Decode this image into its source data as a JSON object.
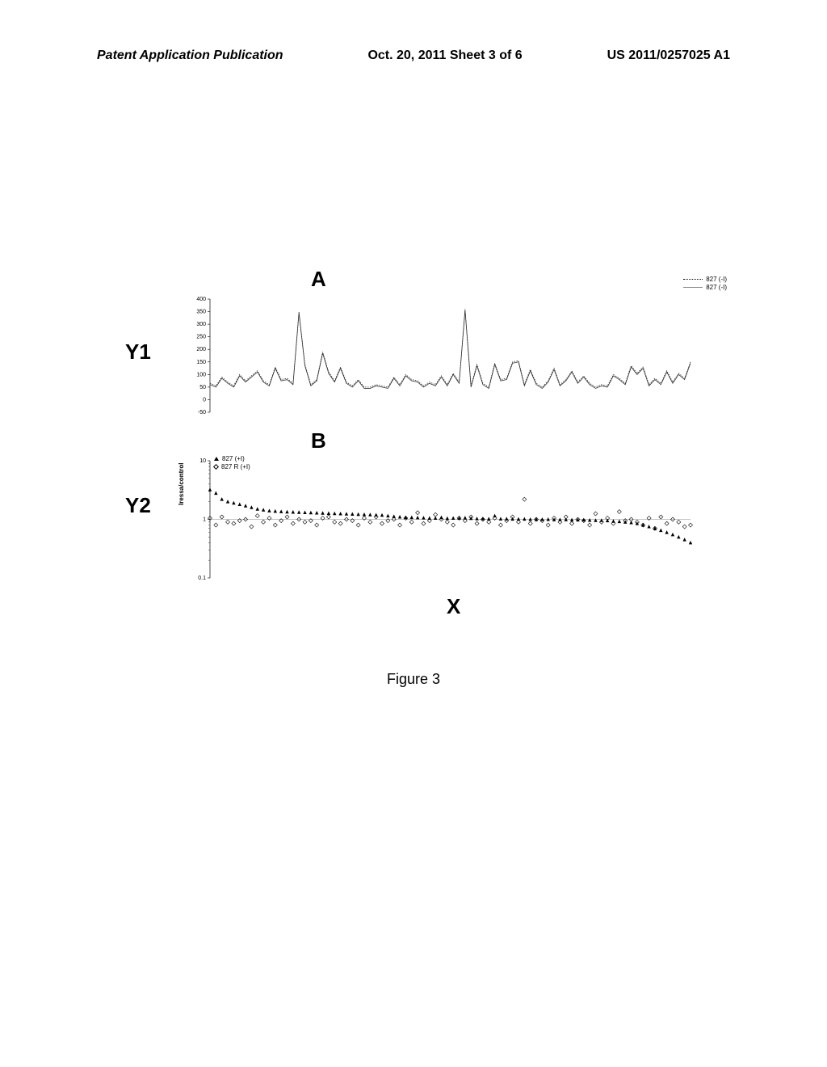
{
  "header": {
    "left": "Patent Application Publication",
    "center": "Oct. 20, 2011  Sheet 3 of 6",
    "right": "US 2011/0257025 A1"
  },
  "figure": {
    "caption": "Figure 3",
    "panelA": {
      "label": "A",
      "yAxisLabel": "Y1",
      "type": "line",
      "yticks": [
        -50,
        0,
        50,
        100,
        150,
        200,
        250,
        300,
        350,
        400
      ],
      "ylim": [
        -50,
        400
      ],
      "legend": [
        {
          "label": "827 (-I)",
          "style": "dotted"
        },
        {
          "label": "827 (-I)",
          "style": "solid"
        }
      ],
      "line_color": "#333333",
      "background_color": "#ffffff",
      "series1": [
        65,
        55,
        90,
        70,
        55,
        100,
        75,
        95,
        115,
        75,
        60,
        130,
        80,
        85,
        65,
        350,
        140,
        60,
        80,
        190,
        110,
        75,
        130,
        70,
        55,
        80,
        50,
        50,
        60,
        55,
        50,
        90,
        60,
        100,
        80,
        75,
        55,
        70,
        60,
        95,
        60,
        105,
        70,
        360,
        55,
        140,
        65,
        50,
        145,
        80,
        85,
        150,
        155,
        60,
        120,
        65,
        50,
        75,
        125,
        60,
        80,
        115,
        70,
        95,
        65,
        50,
        60,
        55,
        100,
        85,
        65,
        135,
        105,
        130,
        60,
        85,
        65,
        115,
        70,
        105,
        85,
        150
      ],
      "series2": [
        60,
        50,
        85,
        65,
        50,
        95,
        70,
        90,
        110,
        70,
        55,
        125,
        75,
        80,
        60,
        345,
        135,
        55,
        75,
        185,
        105,
        70,
        125,
        65,
        50,
        75,
        45,
        45,
        55,
        50,
        45,
        85,
        55,
        95,
        75,
        70,
        50,
        65,
        55,
        90,
        55,
        100,
        65,
        355,
        50,
        135,
        60,
        45,
        140,
        75,
        80,
        145,
        150,
        55,
        115,
        60,
        45,
        70,
        120,
        55,
        75,
        110,
        65,
        90,
        60,
        45,
        55,
        50,
        95,
        80,
        60,
        130,
        100,
        125,
        55,
        80,
        60,
        110,
        65,
        100,
        80,
        145
      ]
    },
    "panelB": {
      "label": "B",
      "yAxisLabel": "Y2",
      "yAxisTitle": "Iressa/control",
      "type": "scatter",
      "yticks": [
        0.1,
        1,
        10
      ],
      "ylim": [
        0.1,
        10
      ],
      "scale": "log",
      "legend": [
        {
          "label": "827 (+I)",
          "marker": "triangle-filled"
        },
        {
          "label": "827 R (+I)",
          "marker": "diamond-open"
        }
      ],
      "marker_color_triangle": "#000000",
      "marker_color_diamond": "#000000",
      "background_color": "#ffffff",
      "triangles": [
        3.2,
        2.8,
        2.2,
        2.0,
        1.9,
        1.8,
        1.7,
        1.6,
        1.5,
        1.45,
        1.4,
        1.38,
        1.36,
        1.34,
        1.33,
        1.32,
        1.31,
        1.3,
        1.29,
        1.28,
        1.27,
        1.26,
        1.25,
        1.24,
        1.23,
        1.22,
        1.21,
        1.2,
        1.19,
        1.18,
        1.15,
        1.12,
        1.1,
        1.08,
        1.08,
        1.07,
        1.06,
        1.05,
        1.05,
        1.08,
        1.04,
        1.05,
        1.05,
        1.06,
        1.04,
        1.03,
        1.03,
        1.02,
        1.15,
        1.02,
        1.02,
        1.01,
        1.01,
        1.01,
        1.0,
        1.0,
        1.0,
        1.0,
        0.99,
        0.99,
        0.99,
        0.98,
        0.98,
        0.98,
        0.97,
        0.96,
        0.96,
        0.95,
        0.93,
        0.92,
        0.9,
        0.88,
        0.85,
        0.8,
        0.75,
        0.7,
        0.65,
        0.6,
        0.55,
        0.5,
        0.45,
        0.4
      ],
      "diamonds": [
        1.05,
        0.8,
        1.1,
        0.9,
        0.85,
        0.95,
        1.0,
        0.75,
        1.15,
        0.9,
        1.05,
        0.8,
        0.95,
        1.1,
        0.85,
        1.0,
        0.9,
        0.95,
        0.8,
        1.05,
        1.1,
        0.9,
        0.85,
        1.0,
        0.95,
        0.8,
        1.05,
        0.9,
        1.1,
        0.85,
        0.95,
        1.0,
        0.8,
        1.05,
        0.9,
        1.3,
        0.85,
        0.95,
        1.2,
        1.0,
        0.9,
        0.8,
        1.05,
        0.95,
        1.1,
        0.85,
        1.0,
        0.9,
        1.05,
        0.8,
        0.95,
        1.1,
        0.9,
        2.2,
        0.85,
        1.0,
        0.95,
        0.8,
        1.05,
        0.9,
        1.1,
        0.85,
        1.0,
        0.95,
        0.8,
        1.25,
        0.9,
        1.05,
        0.85,
        1.35,
        0.95,
        1.0,
        0.9,
        0.8,
        1.05,
        0.7,
        1.1,
        0.85,
        1.0,
        0.9,
        0.75,
        0.8
      ]
    },
    "xAxisLabel": "X"
  }
}
